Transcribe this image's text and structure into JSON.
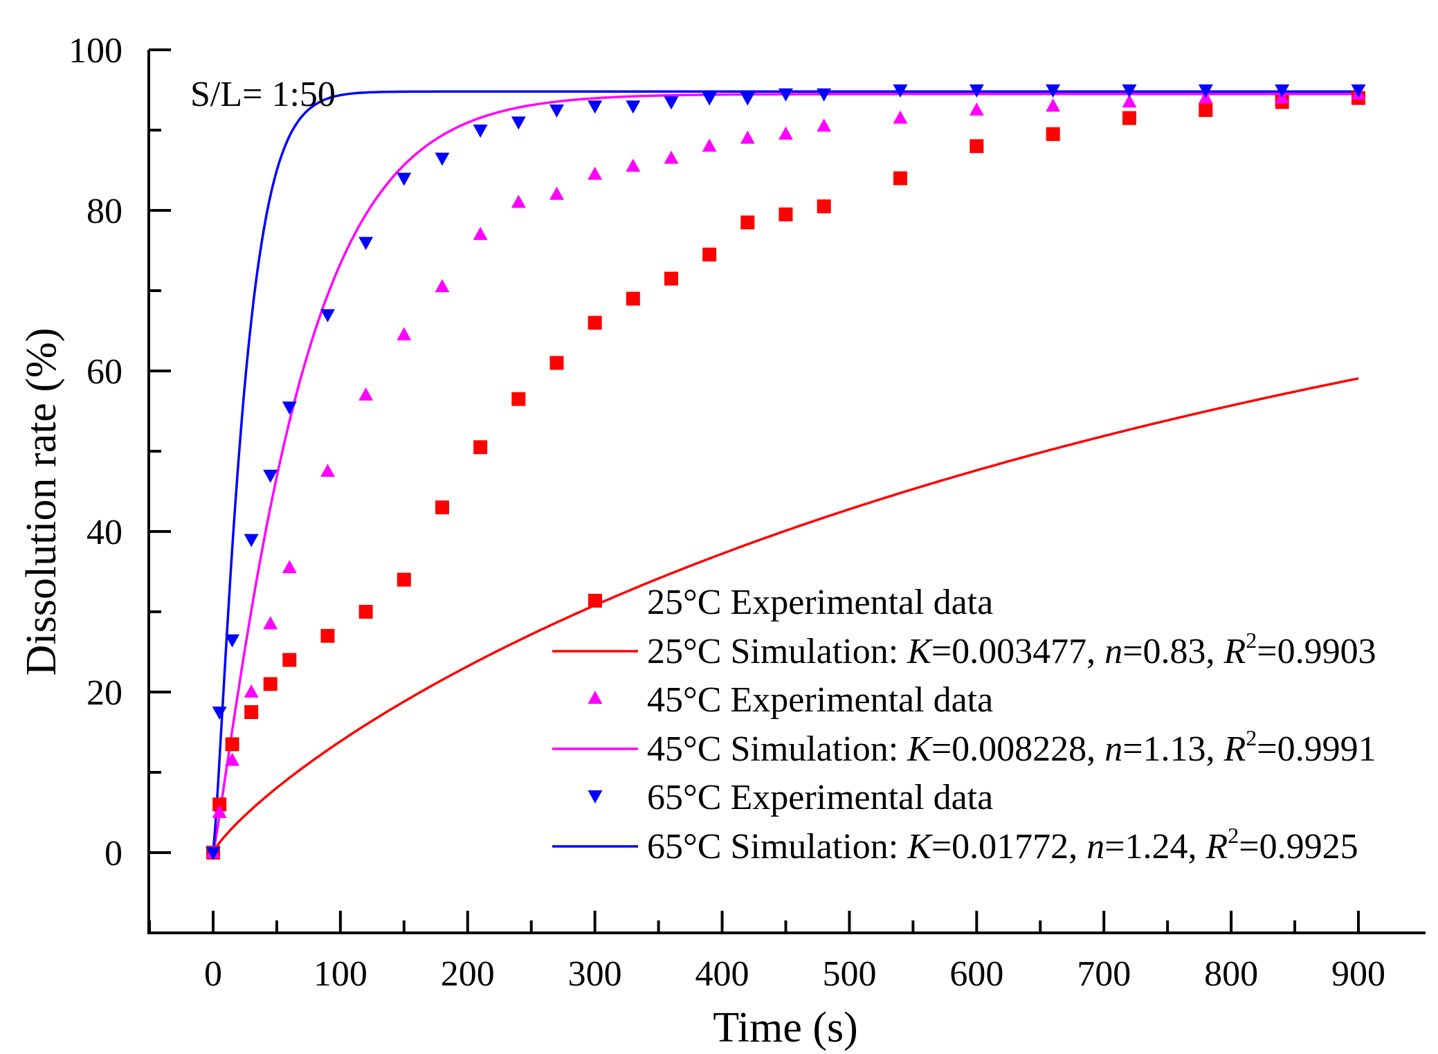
{
  "chart_data": {
    "type": "scatter",
    "xlabel": "Time (s)",
    "ylabel": "Dissolution rate (%)",
    "xlim": [
      -50,
      950
    ],
    "ylim": [
      -10,
      100
    ],
    "xticks": [
      0,
      100,
      200,
      300,
      400,
      500,
      600,
      700,
      800,
      900
    ],
    "yticks": [
      0,
      20,
      40,
      60,
      80,
      100
    ],
    "annotation": "S/L= 1:50",
    "legend_position": "bottom-right",
    "series": [
      {
        "name": "25°C Experimental data",
        "kind": "points",
        "marker": "square",
        "color": "#ff0000",
        "x": [
          0,
          5,
          15,
          30,
          45,
          60,
          90,
          120,
          150,
          180,
          210,
          240,
          270,
          300,
          330,
          360,
          390,
          420,
          450,
          480,
          540,
          600,
          660,
          720,
          780,
          840,
          900
        ],
        "y": [
          0,
          6,
          13.5,
          17.5,
          21,
          24,
          27,
          30,
          34,
          43,
          50.5,
          56.5,
          61,
          66,
          69,
          71.5,
          74.5,
          78.5,
          79.5,
          80.5,
          84,
          88,
          89.5,
          91.5,
          92.5,
          93.5,
          94
        ]
      },
      {
        "name": "25°C Simulation",
        "kind": "line",
        "color": "#ff0000",
        "model": {
          "K": 0.003477,
          "n": 0.83,
          "ymax": 94.3
        },
        "label_prefix": "25°C Simulation: ",
        "K_text": "0.003477",
        "n_text": "0.83",
        "R2_text": "0.9903"
      },
      {
        "name": "45°C Experimental data",
        "kind": "points",
        "marker": "triangle-up",
        "color": "#ff00ff",
        "x": [
          0,
          5,
          15,
          30,
          45,
          60,
          90,
          120,
          150,
          180,
          210,
          240,
          270,
          300,
          330,
          360,
          390,
          420,
          450,
          480,
          540,
          600,
          660,
          720,
          780,
          840,
          900
        ],
        "y": [
          0,
          5,
          11.5,
          20,
          28.5,
          35.5,
          47.5,
          57,
          64.5,
          70.5,
          77,
          81,
          82,
          84.5,
          85.5,
          86.5,
          88,
          89,
          89.5,
          90.5,
          91.5,
          92.5,
          93,
          93.5,
          94,
          94,
          94.5
        ]
      },
      {
        "name": "45°C Simulation",
        "kind": "line",
        "color": "#ff00ff",
        "model": {
          "K": 0.008228,
          "n": 1.13,
          "ymax": 94.5
        },
        "label_prefix": "45°C Simulation: ",
        "K_text": "0.008228",
        "n_text": "1.13",
        "R2_text": "0.9991"
      },
      {
        "name": "65°C Experimental data",
        "kind": "points",
        "marker": "triangle-down",
        "color": "#0000ff",
        "x": [
          0,
          5,
          15,
          30,
          45,
          60,
          90,
          120,
          150,
          180,
          210,
          240,
          270,
          300,
          330,
          360,
          390,
          420,
          450,
          480,
          540,
          600,
          660,
          720,
          780,
          840,
          900
        ],
        "y": [
          0,
          17.5,
          26.5,
          39,
          47,
          55.5,
          67,
          76,
          84,
          86.5,
          90,
          91,
          92.5,
          93,
          93,
          93.5,
          94,
          94,
          94.5,
          94.5,
          95,
          95,
          95,
          95,
          95,
          95,
          95
        ]
      },
      {
        "name": "65°C Simulation",
        "kind": "line",
        "color": "#0000ff",
        "model": {
          "K": 0.01772,
          "n": 1.24,
          "ymax": 94.8
        },
        "label_prefix": "65°C Simulation: ",
        "K_text": "0.01772",
        "n_text": "1.24",
        "R2_text": "0.9925"
      }
    ]
  }
}
